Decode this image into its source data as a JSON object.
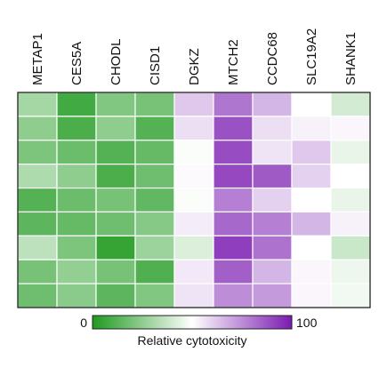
{
  "chart_data": {
    "type": "heatmap",
    "columns": [
      "METAP1",
      "CES5A",
      "CHODL",
      "CISD1",
      "DGKZ",
      "MTCH2",
      "CCDC68",
      "SLC19A2",
      "SHANK1"
    ],
    "rows": 9,
    "value_range": [
      0,
      100
    ],
    "colorscale": {
      "low": "#1e9a1e",
      "mid": "#ffffff",
      "high": "#7a1ab0"
    },
    "values": [
      [
        30,
        8,
        22,
        20,
        62,
        80,
        66,
        50,
        40
      ],
      [
        25,
        10,
        25,
        12,
        57,
        88,
        57,
        53,
        52
      ],
      [
        21,
        17,
        12,
        16,
        49,
        89,
        56,
        62,
        45
      ],
      [
        32,
        25,
        10,
        18,
        51,
        90,
        86,
        60,
        50
      ],
      [
        12,
        17,
        20,
        15,
        49,
        78,
        60,
        50,
        45
      ],
      [
        14,
        16,
        18,
        23,
        54,
        83,
        78,
        66,
        53
      ],
      [
        35,
        21,
        5,
        28,
        42,
        92,
        81,
        50,
        38
      ],
      [
        20,
        26,
        20,
        11,
        55,
        85,
        66,
        52,
        46
      ],
      [
        18,
        24,
        14,
        22,
        56,
        75,
        72,
        52,
        47
      ]
    ],
    "colorbar": {
      "min_label": "0",
      "max_label": "100",
      "title": "Relative cytotoxicity"
    }
  }
}
